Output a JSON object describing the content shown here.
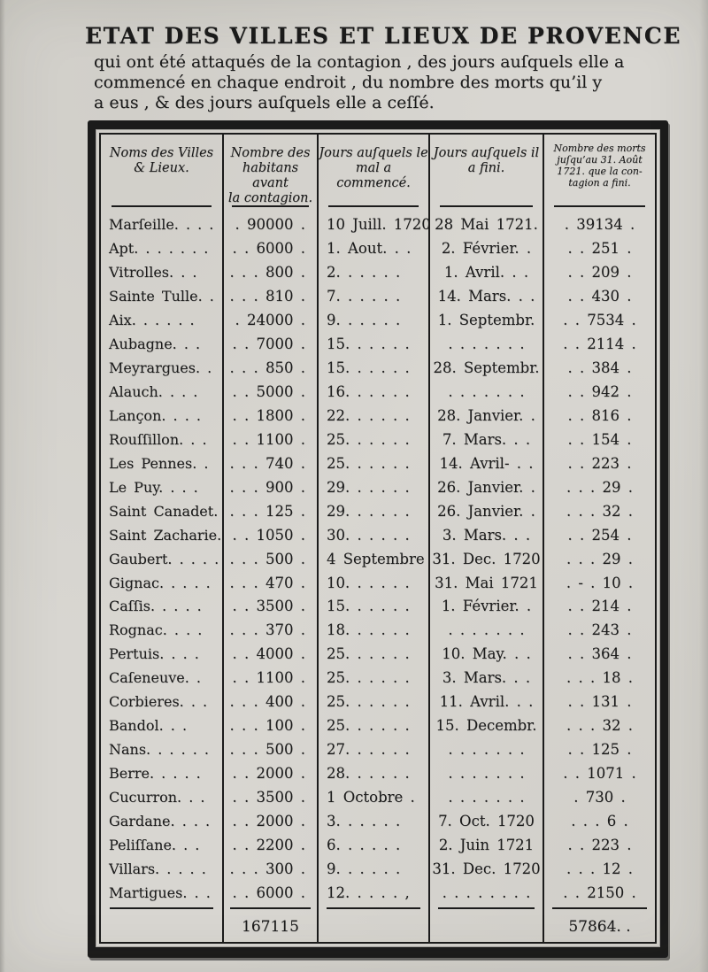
{
  "page": {
    "title": "ETAT DES VILLES ET LIEUX DE PROVENCE",
    "subtitle_lines": [
      "qui ont été attaqués de la contagion , des jours auſquels elle a",
      "commencé en chaque endroit , du nombre des morts qu’il y",
      "a eus , & des jours auſquels elle a ceſſé."
    ]
  },
  "table": {
    "column_keys": [
      "name",
      "inhabitants",
      "began",
      "ended",
      "deaths"
    ],
    "headers": [
      "Noms des Villes\n& Lieux.",
      "Nombre des\nhabitans avant\nla contagion.",
      "Jours auſquels le\nmal a commencé.",
      "Jours auſquels il\na fini.",
      "Nombre des morts\njuſqu’au 31. Août\n1721. que la con-\ntagion a fini."
    ],
    "rows": [
      [
        "Marſeille. . . .",
        ". 90000 .",
        "10 Juill. 1720",
        "28 Mai 1721.",
        ". 39134 ."
      ],
      [
        "Apt. . . . . . .",
        ". . 6000 .",
        "1. Aout. . .",
        "2. Février. .",
        ". . 251 ."
      ],
      [
        "Vitrolles. . .",
        ". . . 800 .",
        "2. . . . . .",
        "1. Avril. . .",
        ". . 209 ."
      ],
      [
        "Sainte Tulle. .",
        ". . . 810 .",
        "7. . . . . .",
        "14. Mars. . .",
        ". . 430 ."
      ],
      [
        "Aix. . . . . .",
        ". 24000 .",
        "9. . . . . .",
        "1. Septembr.",
        ". . 7534 ."
      ],
      [
        "Aubagne. . .",
        ". . 7000 .",
        "15. . . . . .",
        ". . . . . . .",
        ". . 2114 ."
      ],
      [
        "Meyrargues. .",
        ". . . 850 .",
        "15. . . . . .",
        "28. Septembr.",
        ". . 384 ."
      ],
      [
        "Alauch. . . .",
        ". . 5000 .",
        "16. . . . . .",
        ". . . . . . .",
        ". . 942 ."
      ],
      [
        "Lançon. . . .",
        ". . 1800 .",
        "22. . . . . .",
        "28. Janvier. .",
        ". . 816 ."
      ],
      [
        "Rouſſillon. . .",
        ". . 1100 .",
        "25. . . . . .",
        "7. Mars. . .",
        ". . 154 ."
      ],
      [
        "Les Pennes. .",
        ". . . 740 .",
        "25. . . . . .",
        "14. Avril- . .",
        ". . 223 ."
      ],
      [
        "Le Puy. . . .",
        ". . . 900 .",
        "29. . . . . .",
        "26. Janvier. .",
        ". . . 29 ."
      ],
      [
        "Saint Canadet.",
        ". . . 125 .",
        "29. . . . . .",
        "26. Janvier. .",
        ". . . 32 ."
      ],
      [
        "Saint Zacharie.",
        ". . 1050 .",
        "30. . . . . .",
        "3. Mars. . .",
        ". . 254 ."
      ],
      [
        "Gaubert. . . . .",
        ". . . 500 .",
        "4 Septembre",
        "31. Dec. 1720",
        ". . . 29 ."
      ],
      [
        "Gignac. . . . .",
        ". . . 470 .",
        "10. . . . . .",
        "31. Mai 1721",
        ". - . 10 ."
      ],
      [
        "Caſſis. . . . .",
        ". . 3500 .",
        "15. . . . . .",
        "1. Février. .",
        ". . 214 ."
      ],
      [
        "Rognac. . . .",
        ". . . 370 .",
        "18. . . . . .",
        ". . . . . . .",
        ". . 243 ."
      ],
      [
        "Pertuis. . . .",
        ". . 4000 .",
        "25. . . . . .",
        "10. May. . .",
        ". . 364 ."
      ],
      [
        "Caſeneuve. .",
        ". . 1100 .",
        "25. . . . . .",
        "3. Mars. . .",
        ". . . 18 ."
      ],
      [
        "Corbieres. . .",
        ". . . 400 .",
        "25. . . . . .",
        "11. Avril. . .",
        ". . 131 ."
      ],
      [
        "Bandol. . .",
        ". . . 100 .",
        "25. . . . . .",
        "15. Decembr.",
        ". . . 32 ."
      ],
      [
        "Nans. . . . . .",
        ". . . 500 .",
        "27. . . . . .",
        ". . . . . . .",
        ". . 125 ."
      ],
      [
        "Berre. . . . .",
        ". . 2000 .",
        "28. . . . . .",
        ". . . . . . .",
        ". . 1071 ."
      ],
      [
        "Cucurron. . .",
        ". . 3500 .",
        "1 Octobre .",
        ". . . . . . .",
        ". 730 ."
      ],
      [
        "Gardane. . . .",
        ". . 2000 .",
        "3. . . . . .",
        "7. Oct. 1720",
        ". . . 6 ."
      ],
      [
        "Peliſſane. . .",
        ". . 2200 .",
        "6. . . . . .",
        "2. Juin 1721",
        ". . 223 ."
      ],
      [
        "Villars. . . . .",
        ". . . 300 .",
        "9. . . . . .",
        "31. Dec. 1720",
        ". . . 12 ."
      ],
      [
        "Martigues. . .",
        ". . 6000 .",
        "12. . . . . ,",
        ". . . . . . . .",
        ". . 2150 ."
      ]
    ],
    "totals": {
      "inhabitants": "167115",
      "deaths": "57864. ."
    }
  },
  "colors": {
    "paper": "#d8d6d1",
    "ink": "#1b1b1b"
  }
}
